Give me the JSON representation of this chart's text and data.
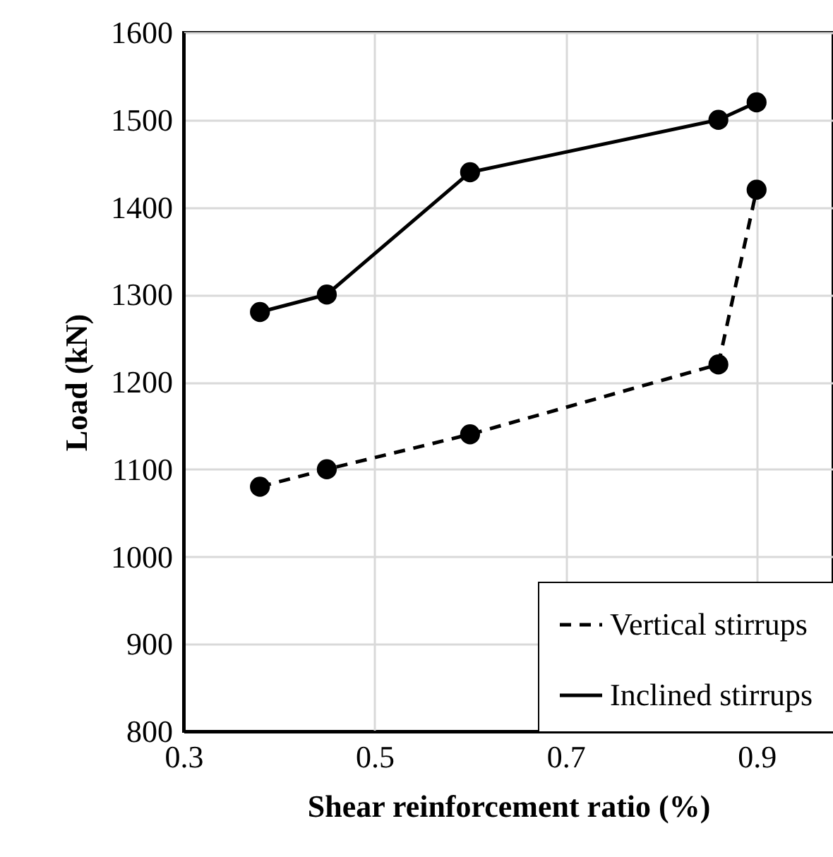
{
  "chart_data": {
    "type": "line",
    "xlabel": "Shear reinforcement ratio (%)",
    "ylabel": "Load (kN)",
    "xlim": [
      0.3,
      0.98
    ],
    "xticks": [
      0.3,
      0.5,
      0.7,
      0.9
    ],
    "ylim": [
      800,
      1600
    ],
    "yticks": [
      800,
      900,
      1000,
      1100,
      1200,
      1300,
      1400,
      1500,
      1600
    ],
    "grid": true,
    "legend": "bottom right",
    "marker": "circle",
    "series": [
      {
        "name": "Vertical stirrups",
        "color": "#000000",
        "line_style": "dashed",
        "x": [
          0.38,
          0.45,
          0.6,
          0.86,
          0.9
        ],
        "values": [
          1080,
          1100,
          1140,
          1220,
          1420
        ]
      },
      {
        "name": "Inclined stirrups",
        "color": "#000000",
        "line_style": "solid",
        "x": [
          0.38,
          0.45,
          0.6,
          0.86,
          0.9
        ],
        "values": [
          1280,
          1300,
          1440,
          1500,
          1520
        ]
      }
    ]
  }
}
